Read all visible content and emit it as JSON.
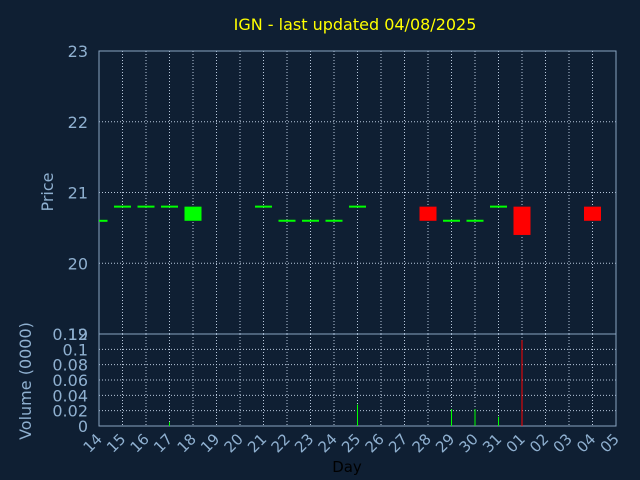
{
  "chart_data": [
    {
      "type": "candlestick",
      "title": "IGN - last updated 04/08/2025",
      "ylabel": "Price",
      "ylim": [
        19,
        23
      ],
      "yticks": [
        19,
        20,
        21,
        22,
        23
      ],
      "colors": {
        "up": "#00ff00",
        "down": "#ff0000",
        "title": "#ffff00",
        "text": "#8fb0d0",
        "background": "#0f1f33"
      },
      "candles": [
        {
          "day": "14",
          "open": 20.6,
          "close": 20.6
        },
        {
          "day": "15",
          "open": 20.8,
          "close": 20.8
        },
        {
          "day": "16",
          "open": 20.8,
          "close": 20.8
        },
        {
          "day": "17",
          "open": 20.8,
          "close": 20.8
        },
        {
          "day": "18",
          "open": 20.6,
          "close": 20.8
        },
        {
          "day": "21",
          "open": 20.8,
          "close": 20.8
        },
        {
          "day": "22",
          "open": 20.6,
          "close": 20.6
        },
        {
          "day": "23",
          "open": 20.6,
          "close": 20.6
        },
        {
          "day": "24",
          "open": 20.6,
          "close": 20.6
        },
        {
          "day": "25",
          "open": 20.8,
          "close": 20.8
        },
        {
          "day": "28",
          "open": 20.8,
          "close": 20.6
        },
        {
          "day": "29",
          "open": 20.6,
          "close": 20.6
        },
        {
          "day": "30",
          "open": 20.6,
          "close": 20.6
        },
        {
          "day": "31",
          "open": 20.8,
          "close": 20.8
        },
        {
          "day": "01",
          "open": 20.8,
          "close": 20.4
        },
        {
          "day": "04",
          "open": 20.8,
          "close": 20.6
        }
      ]
    },
    {
      "type": "bar",
      "ylabel": "Volume (0000)",
      "xlabel": "Day",
      "ylim": [
        0,
        0.12
      ],
      "yticks": [
        "0",
        "0.02",
        "0.04",
        "0.06",
        "0.08",
        "0.1",
        "0.12"
      ],
      "categories": [
        "14",
        "15",
        "16",
        "17",
        "18",
        "19",
        "20",
        "21",
        "22",
        "23",
        "24",
        "25",
        "26",
        "27",
        "28",
        "29",
        "30",
        "31",
        "01",
        "02",
        "03",
        "04",
        "05"
      ],
      "volumes": [
        {
          "day": "17",
          "value": 0.005
        },
        {
          "day": "25",
          "value": 0.028
        },
        {
          "day": "29",
          "value": 0.022
        },
        {
          "day": "30",
          "value": 0.022
        },
        {
          "day": "31",
          "value": 0.012
        },
        {
          "day": "01",
          "value": 0.112
        }
      ]
    }
  ]
}
